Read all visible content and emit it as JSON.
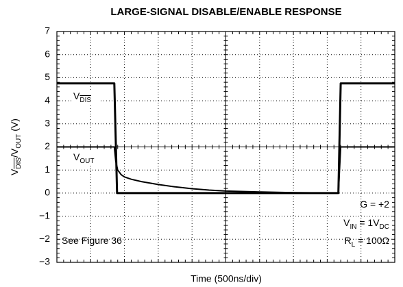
{
  "chart_data": {
    "type": "line",
    "title": "LARGE-SIGNAL DISABLE/ENABLE RESPONSE",
    "xlabel": "Time (500ns/div)",
    "ylabel": {
      "parts": [
        "V",
        "DIS",
        "/V",
        "OUT",
        " (V)"
      ],
      "overline_parts": [
        1
      ]
    },
    "xlim": [
      0,
      10
    ],
    "xticks": [
      0,
      1,
      2,
      3,
      4,
      5,
      6,
      7,
      8,
      9,
      10
    ],
    "ylim": [
      -3,
      7
    ],
    "yticks": [
      {
        "value": -3,
        "label": "−3"
      },
      {
        "value": -2,
        "label": "−2"
      },
      {
        "value": -1,
        "label": "−1"
      },
      0,
      1,
      2,
      3,
      4,
      5,
      6,
      7
    ],
    "grid": true,
    "series": [
      {
        "name_parts": [
          "V",
          "DIS"
        ],
        "overline_parts": [
          1
        ],
        "color": "#000000",
        "x": [
          0,
          1.7,
          1.78,
          8.33,
          8.4,
          10
        ],
        "values": [
          4.75,
          4.75,
          0,
          0,
          4.75,
          4.75
        ]
      },
      {
        "name_parts": [
          "V",
          "OUT"
        ],
        "color": "#000000",
        "x": [
          0,
          1.7,
          1.74,
          1.8,
          1.9,
          2.0,
          2.2,
          2.5,
          3,
          3.5,
          4,
          4.5,
          5,
          6,
          7,
          8.33,
          8.4,
          10
        ],
        "values": [
          2,
          2,
          1.4,
          1.0,
          0.8,
          0.7,
          0.6,
          0.5,
          0.37,
          0.27,
          0.19,
          0.13,
          0.09,
          0.05,
          0.02,
          0,
          2,
          2
        ]
      }
    ],
    "annotations": [
      {
        "parts": [
          "G = +2"
        ]
      },
      {
        "parts": [
          "V",
          "IN",
          " = 1V",
          "DC"
        ]
      },
      {
        "parts": [
          "R",
          "L",
          " = 100Ω"
        ]
      },
      {
        "parts": [
          "See Figure 36"
        ]
      }
    ]
  }
}
